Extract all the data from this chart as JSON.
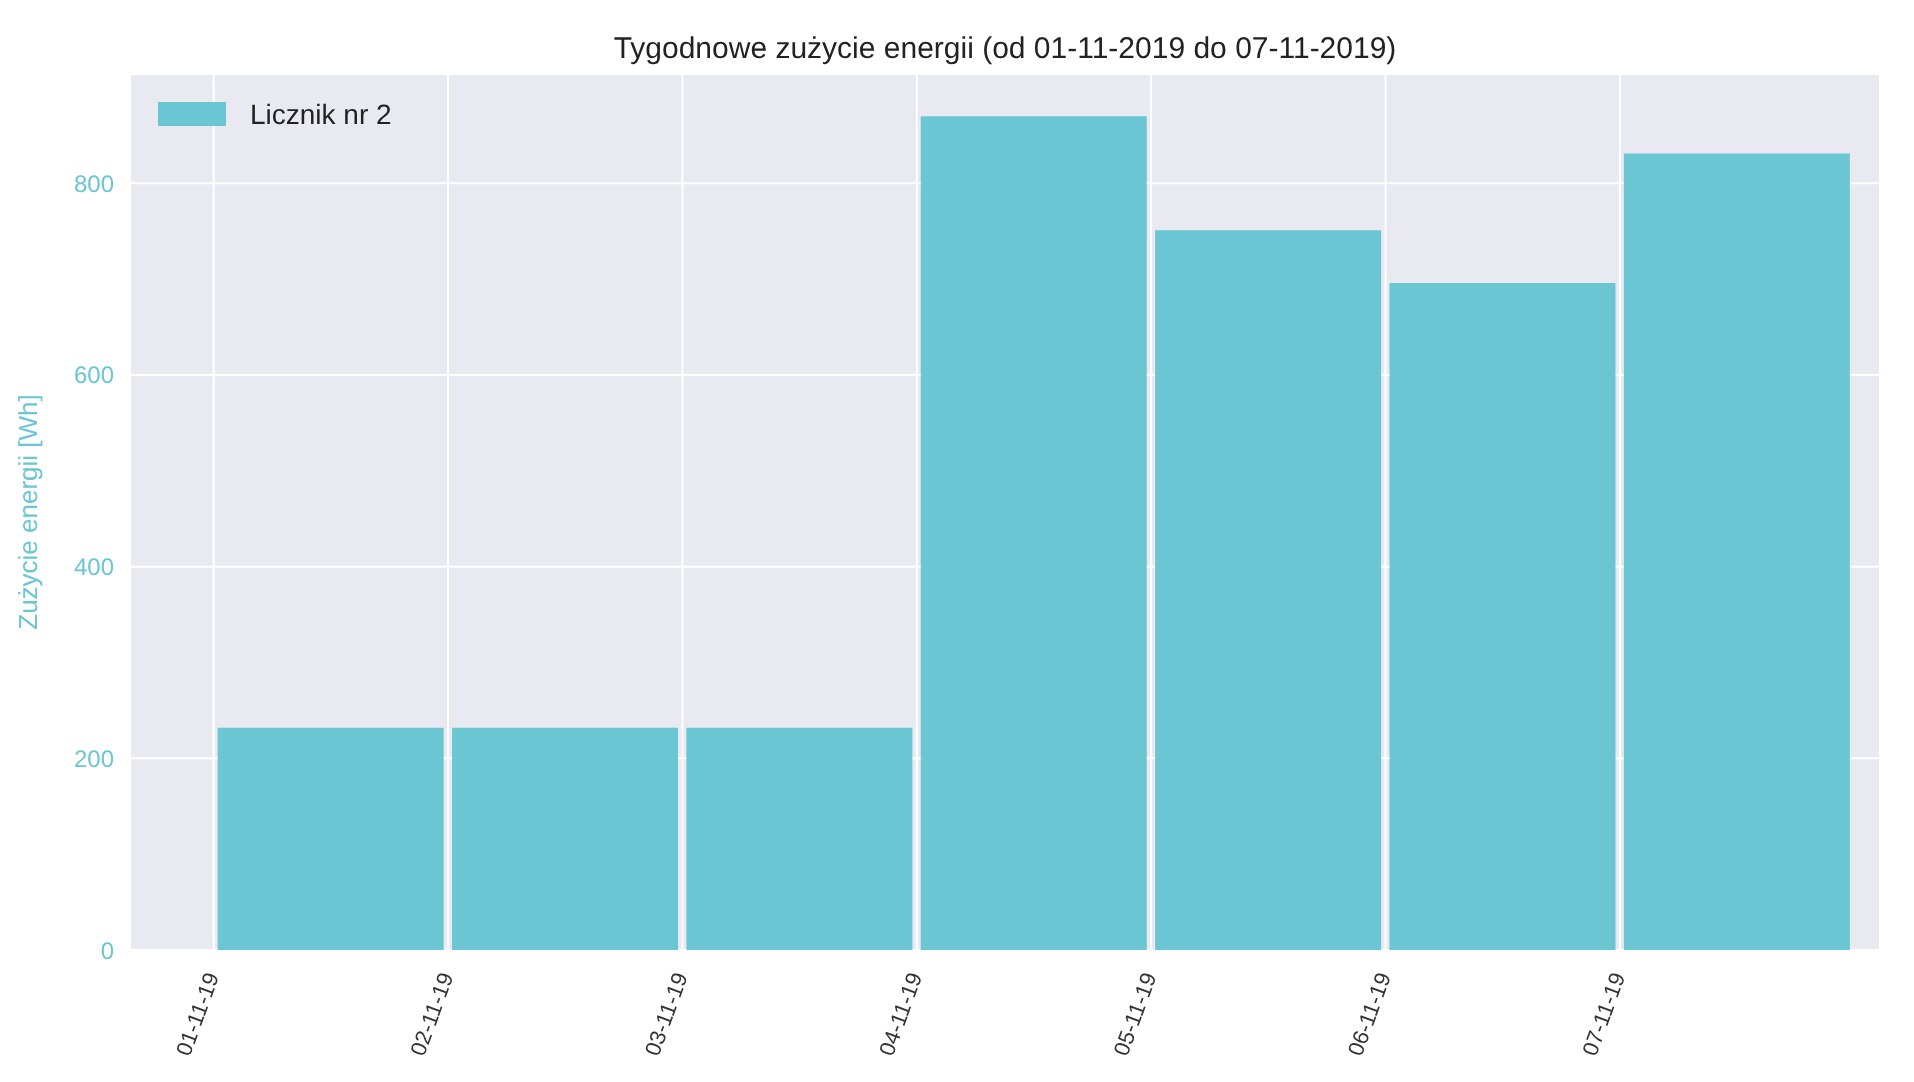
{
  "chart_data": {
    "type": "bar",
    "title": "Tygodnowe zużycie energii (od 01-11-2019 do 07-11-2019)",
    "ylabel": "Zużycie energii [Wh]",
    "categories": [
      "01-11-19",
      "02-11-19",
      "03-11-19",
      "04-11-19",
      "05-11-19",
      "06-11-19",
      "07-11-19"
    ],
    "series": [
      {
        "name": "Licznik nr 2",
        "color": "#6ac6d3",
        "values": [
          232,
          232,
          232,
          870,
          751,
          696,
          831
        ]
      }
    ],
    "ylim": [
      0,
      914
    ],
    "yticks": [
      0,
      200,
      400,
      600,
      800
    ],
    "grid": true,
    "legend": "top left"
  }
}
